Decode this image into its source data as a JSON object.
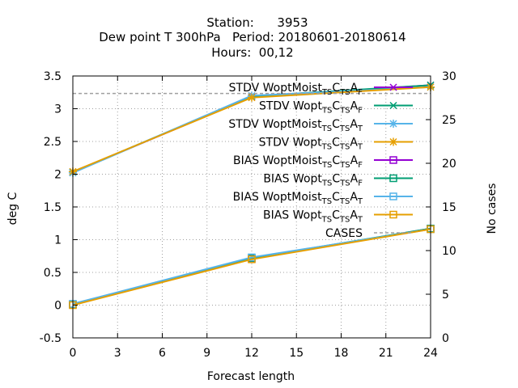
{
  "chart_data": {
    "type": "line",
    "title_lines": [
      "Station:      3953",
      "Dew point T 300hPa   Period: 20180601-20180614",
      "Hours:  00,12"
    ],
    "xlabel": "Forecast length",
    "ylabel": "deg C",
    "y2label": "No cases",
    "xlim": [
      0,
      24
    ],
    "ylim": [
      -0.5,
      3.5
    ],
    "y2lim": [
      0,
      30
    ],
    "xticks": [
      0,
      3,
      6,
      9,
      12,
      15,
      18,
      21,
      24
    ],
    "yticks": [
      -0.5,
      0,
      0.5,
      1,
      1.5,
      2,
      2.5,
      3,
      3.5
    ],
    "y2ticks": [
      0,
      5,
      10,
      15,
      20,
      25,
      30
    ],
    "grid": true,
    "legend_position": "top-right",
    "x": [
      0,
      12,
      24
    ],
    "series": [
      {
        "name": "STDV WoptMoist_{TS}C_{TS}A_{F}",
        "axis": "y",
        "color": "#9400d3",
        "marker": "x",
        "values": [
          2.03,
          3.18,
          3.36
        ]
      },
      {
        "name": "STDV Wopt_{TS}C_{TS}A_{F}",
        "axis": "y",
        "color": "#009e73",
        "marker": "x",
        "values": [
          2.03,
          3.19,
          3.36
        ]
      },
      {
        "name": "STDV WoptMoist_{TS}C_{TS}A_{T}",
        "axis": "y",
        "color": "#56b4e9",
        "marker": "star",
        "values": [
          2.02,
          3.2,
          3.33
        ]
      },
      {
        "name": "STDV Wopt_{TS}C_{TS}A_{T}",
        "axis": "y",
        "color": "#e69f00",
        "marker": "star",
        "values": [
          2.04,
          3.17,
          3.33
        ]
      },
      {
        "name": "BIAS WoptMoist_{TS}C_{TS}A_{F}",
        "axis": "y",
        "color": "#9400d3",
        "marker": "square",
        "values": [
          0.01,
          0.71,
          1.17
        ]
      },
      {
        "name": "BIAS Wopt_{TS}C_{TS}A_{F}",
        "axis": "y",
        "color": "#009e73",
        "marker": "square",
        "values": [
          0.01,
          0.72,
          1.17
        ]
      },
      {
        "name": "BIAS WoptMoist_{TS}C_{TS}A_{T}",
        "axis": "y",
        "color": "#56b4e9",
        "marker": "square",
        "values": [
          0.02,
          0.73,
          1.16
        ]
      },
      {
        "name": "BIAS Wopt_{TS}C_{TS}A_{T}",
        "axis": "y",
        "color": "#e69f00",
        "marker": "square",
        "values": [
          0.0,
          0.7,
          1.16
        ]
      },
      {
        "name": "CASES",
        "axis": "y2",
        "color": "#a0a0a0",
        "marker": "none",
        "dashed": true,
        "values": [
          28,
          28,
          28
        ]
      }
    ]
  }
}
